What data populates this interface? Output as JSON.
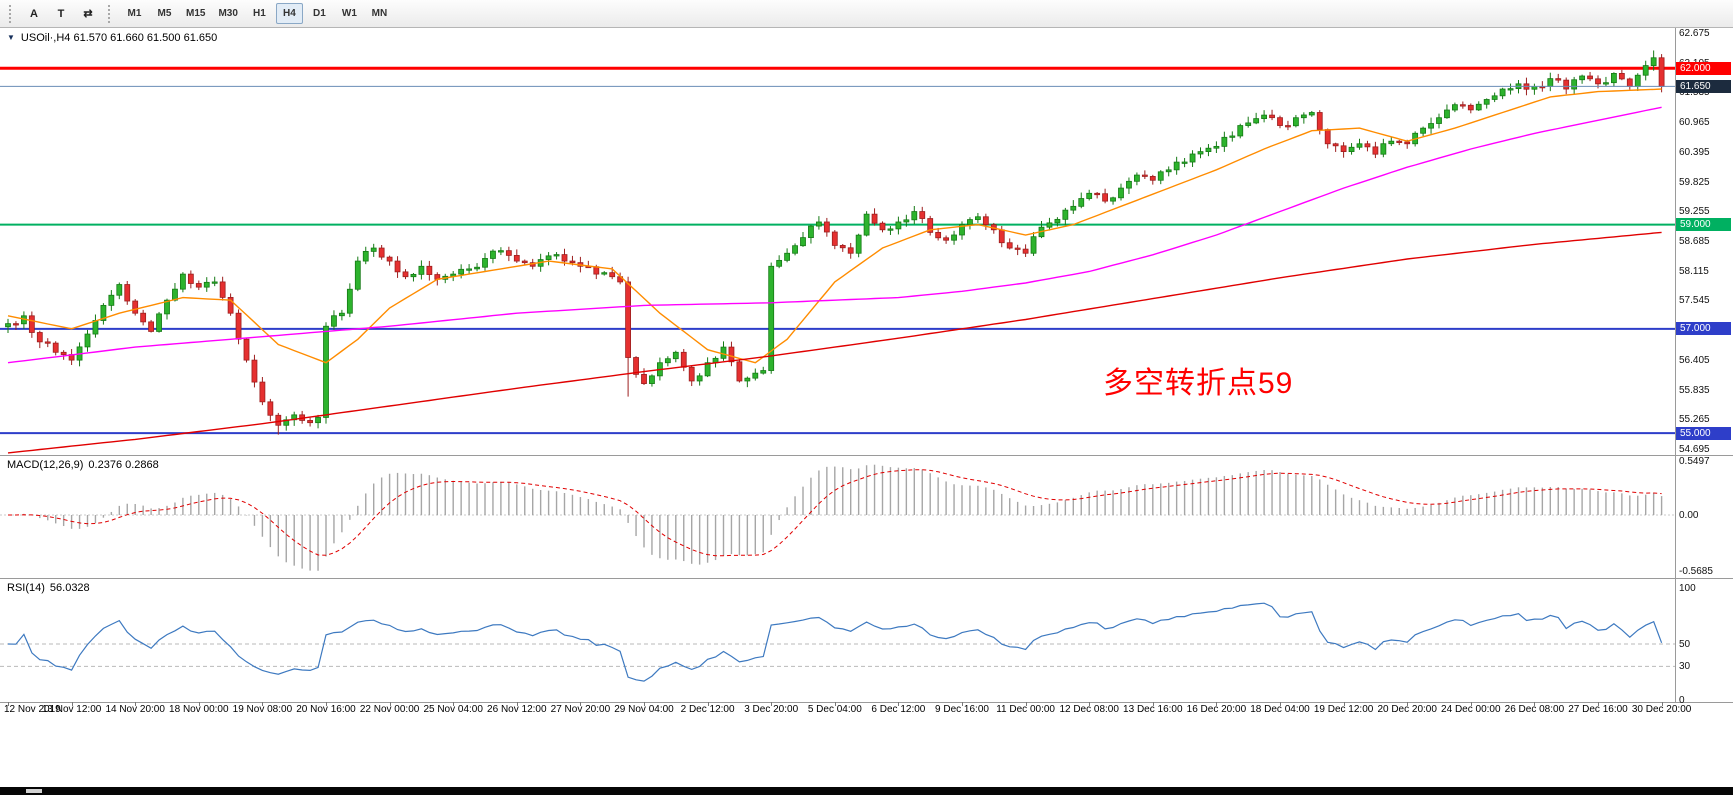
{
  "toolbar": {
    "tool_buttons": [
      {
        "id": "font-tool",
        "label": "A"
      },
      {
        "id": "text-tool",
        "label": "T"
      },
      {
        "id": "indicator-tool",
        "label": "⇄"
      }
    ],
    "timeframes": [
      "M1",
      "M5",
      "M15",
      "M30",
      "H1",
      "H4",
      "D1",
      "W1",
      "MN"
    ],
    "active_timeframe": "H4"
  },
  "chart": {
    "collapse_glyph": "▼",
    "title_line": "USOil·,H4 61.570 61.660 61.500 61.650",
    "annotation": {
      "text": "多空转折点59",
      "color": "#ff0000"
    },
    "price_axis_labels": [
      "62.675",
      "62.105",
      "61.535",
      "60.965",
      "60.395",
      "59.825",
      "59.255",
      "58.685",
      "58.115",
      "57.545",
      "56.975",
      "56.405",
      "55.835",
      "55.265",
      "54.695"
    ],
    "hlines": [
      {
        "label": "62.000",
        "value": 62.0,
        "line_color": "#ff0000",
        "tag_bg": "#ff0000",
        "thickness": 3,
        "current": false
      },
      {
        "label": "61.650",
        "value": 61.65,
        "line_color": "#6a8db6",
        "tag_bg": "#1c2b3e",
        "thickness": 1,
        "current": true
      },
      {
        "label": "59.000",
        "value": 59.0,
        "line_color": "#00b061",
        "tag_bg": "#00b061",
        "thickness": 2,
        "current": false
      },
      {
        "label": "57.000",
        "value": 57.0,
        "line_color": "#2e3ec9",
        "tag_bg": "#2e3ec9",
        "thickness": 2,
        "current": false
      },
      {
        "label": "55.000",
        "value": 55.0,
        "line_color": "#2e3ec9",
        "tag_bg": "#2e3ec9",
        "thickness": 2,
        "current": false
      }
    ],
    "time_axis_labels": [
      "12 Nov 2019",
      "13 Nov 12:00",
      "14 Nov 20:00",
      "18 Nov 00:00",
      "19 Nov 08:00",
      "20 Nov 16:00",
      "22 Nov 00:00",
      "25 Nov 04:00",
      "26 Nov 12:00",
      "27 Nov 20:00",
      "29 Nov 04:00",
      "2 Dec 12:00",
      "3 Dec 20:00",
      "5 Dec 04:00",
      "6 Dec 12:00",
      "9 Dec 16:00",
      "11 Dec 00:00",
      "12 Dec 08:00",
      "13 Dec 16:00",
      "16 Dec 20:00",
      "18 Dec 04:00",
      "19 Dec 12:00",
      "20 Dec 20:00",
      "24 Dec 00:00",
      "26 Dec 08:00",
      "27 Dec 16:00",
      "30 Dec 20:00"
    ]
  },
  "macd": {
    "label": "MACD(12,26,9)",
    "values": "0.2376 0.2868",
    "axis_labels": [
      "0.5497",
      "0.00",
      "-0.5685"
    ]
  },
  "rsi": {
    "label": "RSI(14)",
    "value": "56.0328",
    "axis_labels": [
      "100",
      "50",
      "30",
      "0"
    ],
    "levels": [
      50,
      30
    ]
  },
  "chart_data": {
    "type": "candlestick",
    "symbol": "USOil",
    "timeframe": "H4",
    "bar_count": 209,
    "price_axis_range": [
      54.695,
      62.675
    ],
    "current_bid": 61.65,
    "up_color": "#2db32d",
    "down_color": "#e53030",
    "close_waypoints": [
      [
        0,
        57.1
      ],
      [
        2,
        57.25
      ],
      [
        4,
        56.75
      ],
      [
        6,
        56.55
      ],
      [
        8,
        56.4
      ],
      [
        10,
        56.9
      ],
      [
        12,
        57.45
      ],
      [
        14,
        57.85
      ],
      [
        16,
        57.3
      ],
      [
        18,
        56.95
      ],
      [
        20,
        57.55
      ],
      [
        22,
        58.05
      ],
      [
        24,
        57.8
      ],
      [
        26,
        57.9
      ],
      [
        28,
        57.3
      ],
      [
        30,
        56.4
      ],
      [
        32,
        55.6
      ],
      [
        34,
        55.15
      ],
      [
        36,
        55.35
      ],
      [
        38,
        55.2
      ],
      [
        39,
        55.3
      ],
      [
        40,
        57.05
      ],
      [
        42,
        57.3
      ],
      [
        44,
        58.3
      ],
      [
        46,
        58.55
      ],
      [
        48,
        58.3
      ],
      [
        50,
        58.0
      ],
      [
        52,
        58.2
      ],
      [
        54,
        57.95
      ],
      [
        56,
        58.05
      ],
      [
        58,
        58.15
      ],
      [
        60,
        58.35
      ],
      [
        62,
        58.5
      ],
      [
        64,
        58.3
      ],
      [
        66,
        58.2
      ],
      [
        68,
        58.4
      ],
      [
        70,
        58.3
      ],
      [
        72,
        58.2
      ],
      [
        74,
        58.05
      ],
      [
        76,
        58.0
      ],
      [
        77,
        57.9
      ],
      [
        78,
        56.45
      ],
      [
        80,
        55.95
      ],
      [
        82,
        56.35
      ],
      [
        84,
        56.55
      ],
      [
        86,
        56.0
      ],
      [
        88,
        56.35
      ],
      [
        90,
        56.65
      ],
      [
        92,
        56.0
      ],
      [
        94,
        56.15
      ],
      [
        95,
        56.2
      ],
      [
        96,
        58.2
      ],
      [
        98,
        58.45
      ],
      [
        100,
        58.75
      ],
      [
        102,
        59.05
      ],
      [
        104,
        58.6
      ],
      [
        106,
        58.45
      ],
      [
        108,
        59.2
      ],
      [
        110,
        58.9
      ],
      [
        112,
        59.05
      ],
      [
        114,
        59.25
      ],
      [
        116,
        58.85
      ],
      [
        118,
        58.7
      ],
      [
        120,
        59.0
      ],
      [
        122,
        59.15
      ],
      [
        124,
        58.9
      ],
      [
        126,
        58.55
      ],
      [
        128,
        58.45
      ],
      [
        130,
        58.95
      ],
      [
        132,
        59.1
      ],
      [
        134,
        59.35
      ],
      [
        136,
        59.6
      ],
      [
        138,
        59.45
      ],
      [
        140,
        59.7
      ],
      [
        142,
        59.95
      ],
      [
        144,
        59.85
      ],
      [
        146,
        60.05
      ],
      [
        148,
        60.2
      ],
      [
        150,
        60.4
      ],
      [
        152,
        60.5
      ],
      [
        154,
        60.7
      ],
      [
        156,
        60.95
      ],
      [
        158,
        61.1
      ],
      [
        160,
        60.9
      ],
      [
        162,
        61.05
      ],
      [
        164,
        61.15
      ],
      [
        166,
        60.55
      ],
      [
        168,
        60.4
      ],
      [
        170,
        60.55
      ],
      [
        172,
        60.35
      ],
      [
        174,
        60.6
      ],
      [
        176,
        60.55
      ],
      [
        178,
        60.85
      ],
      [
        180,
        61.05
      ],
      [
        182,
        61.3
      ],
      [
        184,
        61.2
      ],
      [
        186,
        61.4
      ],
      [
        188,
        61.6
      ],
      [
        190,
        61.7
      ],
      [
        192,
        61.65
      ],
      [
        194,
        61.8
      ],
      [
        196,
        61.6
      ],
      [
        198,
        61.85
      ],
      [
        200,
        61.7
      ],
      [
        202,
        61.9
      ],
      [
        204,
        61.65
      ],
      [
        206,
        62.05
      ],
      [
        207,
        62.2
      ],
      [
        208,
        61.65
      ]
    ],
    "special_lows": {
      "34": 54.97,
      "78": 55.7
    },
    "special_highs": {
      "207": 62.34
    },
    "moving_averages": [
      {
        "name": "ma-fast",
        "color": "#ff8c00",
        "waypoints": [
          [
            0,
            57.25
          ],
          [
            8,
            57.0
          ],
          [
            14,
            57.3
          ],
          [
            22,
            57.6
          ],
          [
            28,
            57.55
          ],
          [
            34,
            56.7
          ],
          [
            40,
            56.35
          ],
          [
            44,
            56.8
          ],
          [
            48,
            57.4
          ],
          [
            54,
            57.95
          ],
          [
            60,
            58.1
          ],
          [
            68,
            58.3
          ],
          [
            76,
            58.15
          ],
          [
            82,
            57.3
          ],
          [
            88,
            56.6
          ],
          [
            94,
            56.35
          ],
          [
            98,
            56.8
          ],
          [
            104,
            57.9
          ],
          [
            110,
            58.55
          ],
          [
            116,
            58.9
          ],
          [
            122,
            59.0
          ],
          [
            128,
            58.8
          ],
          [
            134,
            59.0
          ],
          [
            140,
            59.35
          ],
          [
            146,
            59.7
          ],
          [
            152,
            60.05
          ],
          [
            158,
            60.45
          ],
          [
            164,
            60.8
          ],
          [
            170,
            60.85
          ],
          [
            176,
            60.6
          ],
          [
            182,
            60.85
          ],
          [
            188,
            61.15
          ],
          [
            194,
            61.45
          ],
          [
            200,
            61.55
          ],
          [
            208,
            61.6
          ]
        ]
      },
      {
        "name": "ma-medium",
        "color": "#ff00ff",
        "waypoints": [
          [
            0,
            56.35
          ],
          [
            16,
            56.65
          ],
          [
            32,
            56.85
          ],
          [
            48,
            57.05
          ],
          [
            64,
            57.3
          ],
          [
            80,
            57.45
          ],
          [
            96,
            57.5
          ],
          [
            112,
            57.6
          ],
          [
            120,
            57.72
          ],
          [
            128,
            57.88
          ],
          [
            136,
            58.1
          ],
          [
            144,
            58.42
          ],
          [
            152,
            58.8
          ],
          [
            160,
            59.25
          ],
          [
            168,
            59.7
          ],
          [
            176,
            60.1
          ],
          [
            184,
            60.45
          ],
          [
            192,
            60.75
          ],
          [
            200,
            61.0
          ],
          [
            208,
            61.25
          ]
        ]
      },
      {
        "name": "ma-slow",
        "color": "#e00000",
        "waypoints": [
          [
            0,
            54.62
          ],
          [
            16,
            54.88
          ],
          [
            32,
            55.18
          ],
          [
            48,
            55.52
          ],
          [
            64,
            55.86
          ],
          [
            80,
            56.18
          ],
          [
            96,
            56.48
          ],
          [
            112,
            56.82
          ],
          [
            128,
            57.18
          ],
          [
            144,
            57.58
          ],
          [
            160,
            57.98
          ],
          [
            176,
            58.34
          ],
          [
            192,
            58.62
          ],
          [
            208,
            58.85
          ]
        ]
      }
    ],
    "macd": {
      "fast": 12,
      "slow": 26,
      "signal": 9,
      "axis_range": [
        -0.5685,
        0.5497
      ],
      "histogram_color": "#a6a6a6",
      "signal_color": "#e00000"
    },
    "rsi": {
      "period": 14,
      "axis_range": [
        0,
        100
      ],
      "line_color": "#3d79c0"
    }
  }
}
